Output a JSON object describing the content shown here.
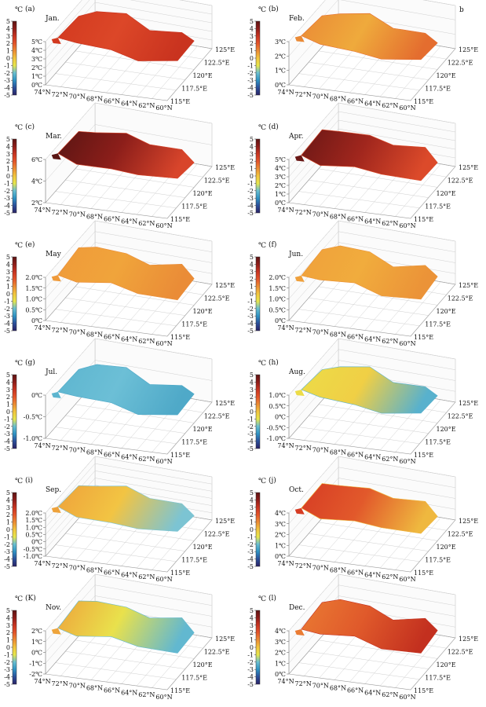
{
  "figure": {
    "colorbar_ticks": [
      "5",
      "4",
      "3",
      "2",
      "1",
      "0",
      "-1",
      "-2",
      "-3",
      "-4",
      "-5"
    ],
    "colorbar_unit": "℃",
    "colorbar_colors": [
      "#5d1414",
      "#8e1d19",
      "#c83421",
      "#e4542a",
      "#ec8c34",
      "#f2c53e",
      "#e7e64c",
      "#69bfd0",
      "#2f93c4",
      "#2b4f9a",
      "#2a2266"
    ],
    "lat_ticks": [
      "74°N",
      "72°N",
      "70°N",
      "68°N",
      "66°N",
      "64°N",
      "62°N",
      "60°N"
    ],
    "lon_ticks": [
      "125°E",
      "122.5°E",
      "120°E",
      "117.5°E",
      "115°E"
    ]
  },
  "chart_data": [
    {
      "type": "surface",
      "panel": "(a)",
      "month": "Jan.",
      "zticks": [
        "5℃",
        "4℃",
        "3℃",
        "2℃",
        "1℃",
        "0℃"
      ],
      "zlim": [
        0,
        5
      ],
      "approx_temperature_c": {
        "min": 3.5,
        "max": 4.5
      },
      "surface_colors": [
        "#d2391f",
        "#dc4728",
        "#c9331f"
      ]
    },
    {
      "type": "surface",
      "panel": "(b)",
      "month": "Feb.",
      "extra_label": "b",
      "zticks": [
        "3℃",
        "2℃",
        "1℃",
        "0℃"
      ],
      "zlim": [
        0,
        3
      ],
      "approx_temperature_c": {
        "min": 1.0,
        "max": 2.5
      },
      "surface_colors": [
        "#ea8a36",
        "#efaa3c",
        "#e46d2f"
      ]
    },
    {
      "type": "surface",
      "panel": "(c)",
      "month": "Mar.",
      "zticks": [
        "6℃",
        "4℃",
        "2℃"
      ],
      "zlim": [
        2,
        6
      ],
      "approx_temperature_c": {
        "min": 3.0,
        "max": 5.5
      },
      "surface_colors": [
        "#5a1513",
        "#8c1e1a",
        "#d8452b"
      ]
    },
    {
      "type": "surface",
      "panel": "(d)",
      "month": "Apr.",
      "zticks": [
        "5℃",
        "4℃",
        "3℃",
        "2℃",
        "1℃",
        "0℃"
      ],
      "zlim": [
        0,
        5
      ],
      "approx_temperature_c": {
        "min": 3.0,
        "max": 5.0
      },
      "surface_colors": [
        "#6a1715",
        "#a0261d",
        "#dc4a2a"
      ]
    },
    {
      "type": "surface",
      "panel": "(e)",
      "month": "May",
      "zticks": [
        "2.0℃",
        "1.5℃",
        "1.0℃",
        "0.5℃",
        "0℃"
      ],
      "zlim": [
        0,
        2
      ],
      "approx_temperature_c": {
        "min": 1.0,
        "max": 1.6
      },
      "surface_colors": [
        "#ef9a3a",
        "#f0a43b",
        "#ea8c37"
      ]
    },
    {
      "type": "surface",
      "panel": "(f)",
      "month": "Jun.",
      "zticks": [
        "2.0℃",
        "1.5℃",
        "1.0℃",
        "0.5℃",
        "0℃"
      ],
      "zlim": [
        0,
        2
      ],
      "approx_temperature_c": {
        "min": 1.0,
        "max": 1.6
      },
      "surface_colors": [
        "#efa03b",
        "#f1ac3d",
        "#eb9338"
      ]
    },
    {
      "type": "surface",
      "panel": "(g)",
      "month": "Jul.",
      "zticks": [
        "0℃",
        "-0.5℃",
        "-1.0℃"
      ],
      "zlim": [
        -1,
        0
      ],
      "approx_temperature_c": {
        "min": -0.6,
        "max": -0.2
      },
      "surface_colors": [
        "#5db5cf",
        "#6cbfd6",
        "#4fa9c8"
      ]
    },
    {
      "type": "surface",
      "panel": "(h)",
      "month": "Aug.",
      "zticks": [
        "1.0℃",
        "0.5℃",
        "0℃",
        "-0.5℃",
        "-1.0℃"
      ],
      "zlim": [
        -1,
        1
      ],
      "approx_temperature_c": {
        "min": -0.3,
        "max": 0.8
      },
      "surface_colors": [
        "#ecdc48",
        "#f0cf45",
        "#58b1cd"
      ]
    },
    {
      "type": "surface",
      "panel": "(i)",
      "month": "Sep.",
      "zticks": [
        "2.0℃",
        "1.5℃",
        "1.0℃",
        "0.5℃",
        "0℃",
        "-0.5℃",
        "-1.0℃"
      ],
      "zlim": [
        -1,
        2
      ],
      "approx_temperature_c": {
        "min": 0.0,
        "max": 1.7
      },
      "surface_colors": [
        "#eea23b",
        "#f2c443",
        "#7cc4d3"
      ]
    },
    {
      "type": "surface",
      "panel": "(j)",
      "month": "Oct.",
      "zticks": [
        "4℃",
        "3℃",
        "2℃",
        "1℃",
        "0℃"
      ],
      "zlim": [
        0,
        4
      ],
      "approx_temperature_c": {
        "min": 1.0,
        "max": 3.5
      },
      "surface_colors": [
        "#d63c24",
        "#e2592b",
        "#efb83f"
      ]
    },
    {
      "type": "surface",
      "panel": "(K)",
      "month": "Nov.",
      "zticks": [
        "2℃",
        "1℃",
        "0℃",
        "-1℃",
        "-2℃"
      ],
      "zlim": [
        -2,
        2
      ],
      "approx_temperature_c": {
        "min": -0.8,
        "max": 1.2
      },
      "surface_colors": [
        "#eea43b",
        "#e9e14c",
        "#62b8d0"
      ]
    },
    {
      "type": "surface",
      "panel": "(l)",
      "month": "Dec.",
      "zticks": [
        "4℃",
        "3℃",
        "2℃",
        "1℃",
        "0℃"
      ],
      "zlim": [
        0,
        4
      ],
      "approx_temperature_c": {
        "min": 1.5,
        "max": 3.5
      },
      "surface_colors": [
        "#ea7b33",
        "#e05a2b",
        "#c3301f"
      ]
    }
  ]
}
